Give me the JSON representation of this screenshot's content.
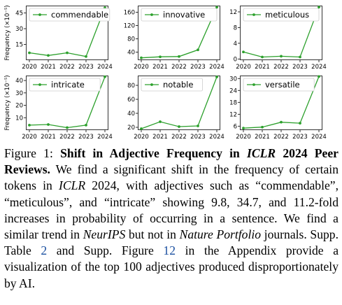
{
  "chart_data": [
    {
      "type": "line",
      "legend": "commendable",
      "x": [
        2020,
        2021,
        2022,
        2023,
        2024
      ],
      "y": [
        7.0,
        4.5,
        7.0,
        3.5,
        50.0
      ],
      "yticks": [
        15,
        30,
        45
      ],
      "ylim": [
        0,
        52
      ],
      "ylabel": "Frequency (×10⁻⁵)",
      "legend_loc": "top-left",
      "grid": false
    },
    {
      "type": "line",
      "legend": "innovative",
      "x": [
        2020,
        2021,
        2022,
        2023,
        2024
      ],
      "y": [
        23,
        26,
        27,
        47,
        175
      ],
      "yticks": [
        40,
        80,
        120,
        160
      ],
      "ylim": [
        16,
        180
      ],
      "legend_loc": "top-left",
      "grid": false
    },
    {
      "type": "line",
      "legend": "meticulous",
      "x": [
        2020,
        2021,
        2022,
        2023,
        2024
      ],
      "y": [
        1.8,
        0.5,
        0.7,
        0.5,
        13.2
      ],
      "yticks": [
        0,
        4,
        8,
        12
      ],
      "ylim": [
        -0.3,
        13.6
      ],
      "legend_loc": "top-left",
      "grid": false
    },
    {
      "type": "line",
      "legend": "intricate",
      "x": [
        2020,
        2021,
        2022,
        2023,
        2024
      ],
      "y": [
        4,
        4.5,
        2,
        4,
        43
      ],
      "yticks": [
        10,
        20,
        30,
        40
      ],
      "ylim": [
        0,
        44
      ],
      "ylabel": "Frequency (×10⁻⁵)",
      "legend_loc": "top-left",
      "grid": false
    },
    {
      "type": "line",
      "legend": "notable",
      "x": [
        2020,
        2021,
        2022,
        2023,
        2024
      ],
      "y": [
        18,
        28,
        21,
        22,
        92
      ],
      "yticks": [
        20,
        40,
        60,
        80
      ],
      "ylim": [
        16,
        94
      ],
      "legend_loc": "top-left",
      "grid": false
    },
    {
      "type": "line",
      "legend": "versatile",
      "x": [
        2020,
        2021,
        2022,
        2023,
        2024
      ],
      "y": [
        5,
        5.5,
        8,
        7.5,
        31
      ],
      "yticks": [
        6,
        12,
        18,
        24,
        30
      ],
      "ylim": [
        4,
        31.5
      ],
      "legend_loc": "top-left",
      "grid": false
    }
  ],
  "xticks": [
    "2020",
    "2021",
    "2022",
    "2023",
    "2024"
  ],
  "line_color": "#2ca02c",
  "caption": {
    "label": "Figure 1:",
    "title_a": "Shift in Adjective Frequency in ",
    "title_venue": "ICLR",
    "title_b": " 2024 Peer Reviews.",
    "text_a": " We find a significant shift in the frequency of certain tokens in ",
    "venue1": "ICLR",
    "text_b": " 2024, with adjectives such as “commendable”, “meticulous”, and “intricate” showing 9.8, 34.7, and 11.2-fold increases in probability of occurring in a sentence. We find a similar trend in ",
    "venue2": "NeurIPS",
    "text_c": " but not in ",
    "venue3": "Nature Portfolio",
    "text_d": " journals. Supp. Table ",
    "ref1": "2",
    "text_e": " and Supp. Figure ",
    "ref2": "12",
    "text_f": " in the Appendix provide a visualization of the top 100 adjectives produced disproportionately by AI."
  }
}
